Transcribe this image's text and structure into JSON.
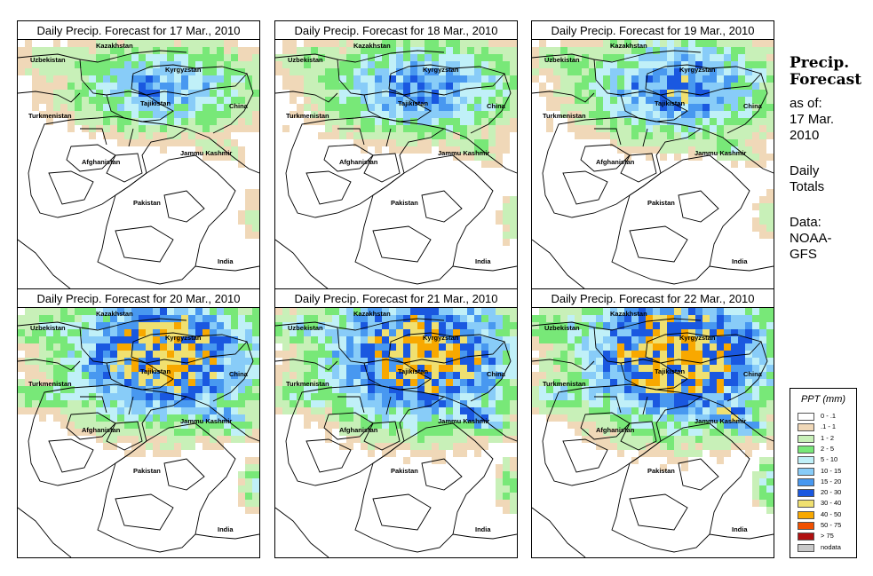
{
  "panels": [
    {
      "title": "Daily Precip. Forecast for  17 Mar., 2010",
      "intensity": 0.2
    },
    {
      "title": "Daily Precip. Forecast for  18 Mar., 2010",
      "intensity": 0.3
    },
    {
      "title": "Daily Precip. Forecast for  19 Mar., 2010",
      "intensity": 0.35
    },
    {
      "title": "Daily Precip. Forecast for  20 Mar., 2010",
      "intensity": 0.7
    },
    {
      "title": "Daily Precip. Forecast for  21 Mar., 2010",
      "intensity": 0.75
    },
    {
      "title": "Daily Precip. Forecast for  22 Mar., 2010",
      "intensity": 0.8
    }
  ],
  "map_labels": {
    "kazakhstan": "Kazakhstan",
    "uzbekistan": "Uzbekistan",
    "kyrgyzstan": "Kyrgyzstan",
    "tajikistan": "Tajikistan",
    "turkmenistan": "Turkmenistan",
    "china": "China",
    "afghanistan": "Afghanistan",
    "jammu_kashmir": "Jammu Kashmir",
    "pakistan": "Pakistan",
    "india": "India"
  },
  "side": {
    "title_line1": "Precip.",
    "title_line2": "Forecast",
    "asof_line1": "as of:",
    "asof_line2": "17 Mar.",
    "asof_line3": "2010",
    "totals_line1": "Daily",
    "totals_line2": "Totals",
    "data_line1": "Data:",
    "data_line2": "NOAA-",
    "data_line3": "GFS"
  },
  "legend": {
    "title": "PPT (mm)",
    "items": [
      {
        "label": "0 - .1",
        "color": "#ffffff"
      },
      {
        "label": ".1 - 1",
        "color": "#f0d8b8"
      },
      {
        "label": "1 - 2",
        "color": "#c8f0b8"
      },
      {
        "label": "2 - 5",
        "color": "#78e878"
      },
      {
        "label": "5 - 10",
        "color": "#c0f0f8"
      },
      {
        "label": "10 - 15",
        "color": "#88ccf8"
      },
      {
        "label": "15 - 20",
        "color": "#4898f0"
      },
      {
        "label": "20 - 30",
        "color": "#1a58e0"
      },
      {
        "label": "30 - 40",
        "color": "#f0e070"
      },
      {
        "label": "40 - 50",
        "color": "#f8a800"
      },
      {
        "label": "50 - 75",
        "color": "#f05000"
      },
      {
        "label": "> 75",
        "color": "#b01010"
      },
      {
        "label": "nodata",
        "color": "#c8c8c8"
      }
    ]
  }
}
